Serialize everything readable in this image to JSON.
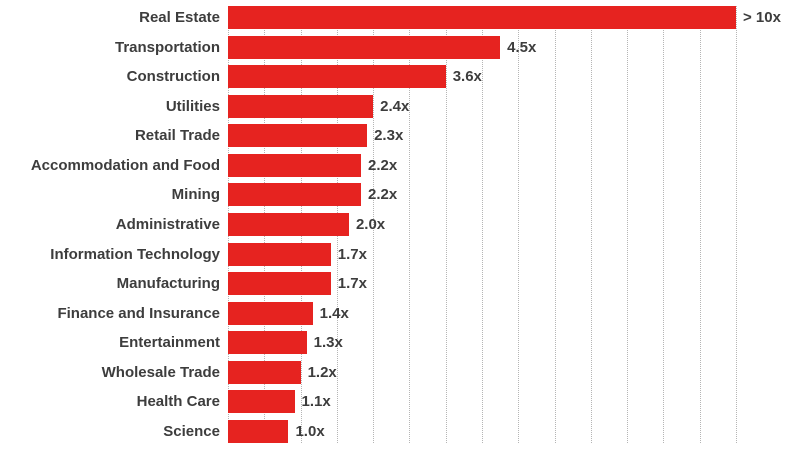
{
  "chart_data": {
    "type": "bar",
    "orientation": "horizontal",
    "title": "",
    "xlabel": "",
    "ylabel": "",
    "categories": [
      "Real Estate",
      "Transportation",
      "Construction",
      "Utilities",
      "Retail Trade",
      "Accommodation and Food",
      "Mining",
      "Administrative",
      "Information Technology",
      "Manufacturing",
      "Finance and Insurance",
      "Entertainment",
      "Wholesale Trade",
      "Health Care",
      "Science"
    ],
    "values": [
      10,
      4.5,
      3.6,
      2.4,
      2.3,
      2.2,
      2.2,
      2.0,
      1.7,
      1.7,
      1.4,
      1.3,
      1.2,
      1.1,
      1.0
    ],
    "value_labels": [
      "> 10x",
      "4.5x",
      "3.6x",
      "2.4x",
      "2.3x",
      "2.2x",
      "2.2x",
      "2.0x",
      "1.7x",
      "1.7x",
      "1.4x",
      "1.3x",
      "1.2x",
      "1.1x",
      "1.0x"
    ],
    "xlim": [
      0,
      8.4
    ],
    "clip_bars_at_axis_max": true,
    "grid": "vertical-dotted",
    "gridline_count": 14,
    "legend": "none",
    "bar_color": "#e62320",
    "label_color": "#3d3d3d",
    "gridline_color": "#b5b5b5",
    "background_color": "#ffffff"
  }
}
